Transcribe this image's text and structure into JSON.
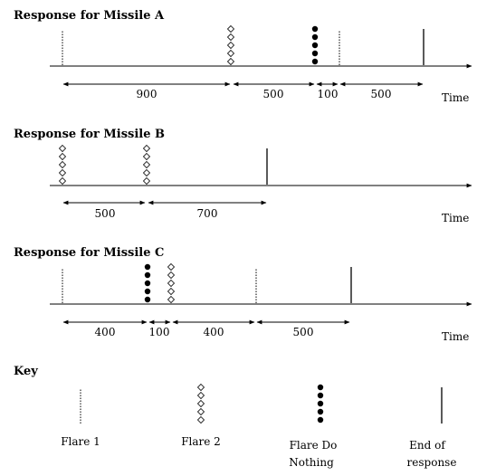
{
  "diagram": {
    "time_axis_label": "Time",
    "panels": [
      {
        "id": "A",
        "title": "Response for Missile A",
        "intervals": [
          "900",
          "500",
          "100",
          "500"
        ],
        "events": [
          "flare-1",
          "flare-2",
          "flare-do-nothing",
          "flare-1",
          "end-of-response"
        ]
      },
      {
        "id": "B",
        "title": "Response for Missile B",
        "intervals": [
          "500",
          "700"
        ],
        "events": [
          "flare-2",
          "flare-2",
          "end-of-response"
        ]
      },
      {
        "id": "C",
        "title": "Response for Missile C",
        "intervals": [
          "400",
          "100",
          "400",
          "500"
        ],
        "events": [
          "flare-1",
          "flare-do-nothing",
          "flare-2",
          "flare-1",
          "end-of-response"
        ]
      }
    ],
    "key": {
      "title": "Key",
      "items": [
        {
          "symbol": "flare-1",
          "label_lines": [
            "Flare 1"
          ]
        },
        {
          "symbol": "flare-2",
          "label_lines": [
            "Flare 2"
          ]
        },
        {
          "symbol": "flare-do-nothing",
          "label_lines": [
            "Flare Do",
            "Nothing"
          ]
        },
        {
          "symbol": "end-of-response",
          "label_lines": [
            "End of",
            "response"
          ]
        }
      ]
    }
  }
}
